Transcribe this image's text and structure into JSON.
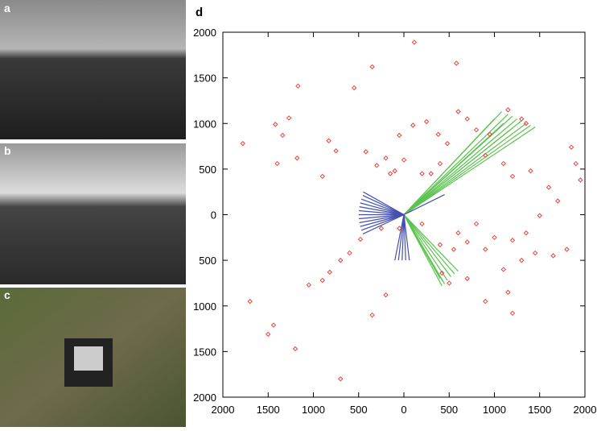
{
  "panel_labels": [
    "a",
    "b",
    "c"
  ],
  "chart_data": {
    "type": "scatter",
    "panel_label": "d",
    "xlim": [
      -2000,
      2000
    ],
    "ylim": [
      -2000,
      2000
    ],
    "xticks": [
      {
        "value": -2000,
        "label": "2000"
      },
      {
        "value": -1500,
        "label": "1500"
      },
      {
        "value": -1000,
        "label": "1000"
      },
      {
        "value": -500,
        "label": "500"
      },
      0,
      500,
      1000,
      1500,
      2000
    ],
    "yticks": [
      {
        "value": -2000,
        "label": "2000"
      },
      {
        "value": -1500,
        "label": "1500"
      },
      {
        "value": -1000,
        "label": "1000"
      },
      {
        "value": -500,
        "label": "500"
      },
      0,
      500,
      1000,
      1500,
      2000
    ],
    "series": [
      {
        "style": "points",
        "color": "#e8453c",
        "x": [
          115,
          -350,
          580,
          -1170,
          -550,
          -1420,
          -1270,
          -1340,
          -1400,
          -1180,
          -1780,
          -900,
          -830,
          -750,
          -420,
          -200,
          -300,
          -100,
          0,
          200,
          400,
          480,
          380,
          100,
          250,
          -50,
          600,
          700,
          800,
          950,
          900,
          1100,
          1200,
          1400,
          1600,
          1850,
          1900,
          1950,
          1700,
          1500,
          1350,
          1200,
          1000,
          900,
          700,
          600,
          800,
          1100,
          1300,
          1450,
          1650,
          1800,
          1150,
          1200,
          900,
          700,
          500,
          420,
          -200,
          -350,
          -700,
          -900,
          -1050,
          -820,
          -1700,
          -1440,
          -1500,
          -1200,
          -700,
          -480,
          -600,
          -250,
          -50,
          200,
          400,
          550,
          300,
          -150,
          1300,
          1150,
          1350
        ],
        "y": [
          1890,
          1620,
          1660,
          1410,
          1390,
          990,
          1060,
          870,
          560,
          620,
          780,
          420,
          810,
          700,
          690,
          620,
          540,
          480,
          600,
          450,
          560,
          780,
          880,
          980,
          1020,
          870,
          1130,
          1050,
          930,
          880,
          650,
          560,
          420,
          480,
          300,
          740,
          560,
          380,
          150,
          -10,
          -200,
          -280,
          -250,
          -380,
          -300,
          -200,
          -100,
          -600,
          -500,
          -420,
          -450,
          -380,
          -850,
          -1080,
          -950,
          -700,
          -750,
          -640,
          -880,
          -1100,
          -500,
          -720,
          -770,
          -630,
          -950,
          -1210,
          -1310,
          -1470,
          -1800,
          -270,
          -420,
          -150,
          -150,
          -100,
          -330,
          -380,
          450,
          450,
          1050,
          1150,
          1000
        ]
      },
      {
        "style": "rays",
        "color": "#5cc24f",
        "x": [
          1080,
          1150,
          1200,
          1250,
          1300,
          1350,
          1400,
          1450,
          1000,
          1100,
          1200,
          400,
          430,
          450,
          480,
          520,
          560,
          600,
          420
        ],
        "y": [
          1130,
          1100,
          1080,
          1050,
          1030,
          1000,
          980,
          960,
          1050,
          1000,
          950,
          -700,
          -730,
          -760,
          -720,
          -680,
          -650,
          -620,
          -780
        ]
      },
      {
        "style": "rays",
        "color": "#4450b0",
        "x": [
          -450,
          -453,
          -470,
          -483,
          -492,
          -498,
          -500,
          -498,
          -492,
          -483,
          -470,
          -453,
          -100,
          -60,
          -20,
          20,
          60,
          450
        ],
        "y": [
          250,
          211,
          171,
          129,
          87,
          44,
          0,
          -44,
          -87,
          -129,
          -171,
          -211,
          -500,
          -500,
          -500,
          -500,
          -500,
          220
        ]
      }
    ]
  }
}
